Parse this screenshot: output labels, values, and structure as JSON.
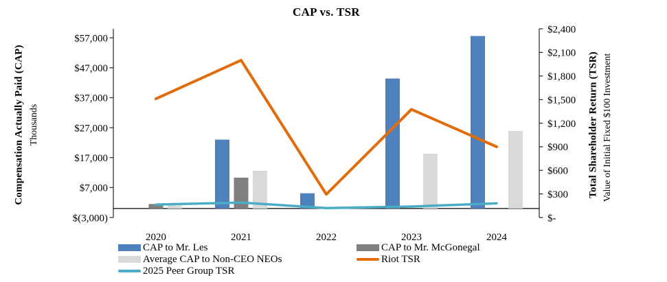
{
  "page": {
    "background": "#ffffff"
  },
  "chart_data": {
    "type": "combo-bar-line",
    "title": "CAP vs. TSR",
    "categories": [
      "2020",
      "2021",
      "2022",
      "2023",
      "2024"
    ],
    "left_axis": {
      "title": "Compensation Actually Paid (CAP)",
      "subtitle": "Thousands",
      "min": -3000,
      "max": 60000,
      "tick_step": 10000,
      "tick_labels": [
        "$(3,000)",
        "$7,000",
        "$17,000",
        "$27,000",
        "$37,000",
        "$47,000",
        "$57,000"
      ]
    },
    "right_axis": {
      "title": "Total Shareholder Return (TSR)",
      "subtitle": "Value of Initial Fixed $100 Investment",
      "min": 0,
      "max": 2400,
      "tick_step": 300,
      "tick_labels": [
        "$-",
        "$300",
        "$600",
        "$900",
        "$1,200",
        "$1,500",
        "$1,800",
        "$2,100",
        "$2,400"
      ]
    },
    "series": [
      {
        "name": "CAP to Mr. Les",
        "type": "bar",
        "axis": "left",
        "color": "#4F81BD",
        "values": [
          null,
          23000,
          5100,
          43400,
          57600
        ]
      },
      {
        "name": "CAP to Mr. McGonegal",
        "type": "bar",
        "axis": "left",
        "color": "#7F7F7F",
        "values": [
          1500,
          10300,
          null,
          null,
          null
        ]
      },
      {
        "name": "Average CAP to Non-CEO NEOs",
        "type": "bar",
        "axis": "left",
        "color": "#D9D9D9",
        "values": [
          1000,
          12600,
          null,
          18300,
          25900
        ]
      },
      {
        "name": "Riot TSR",
        "type": "line",
        "axis": "right",
        "color": "#E36C0A",
        "values": [
          1510,
          2000,
          295,
          1375,
          900
        ]
      },
      {
        "name": "2025 Peer Group TSR",
        "type": "line",
        "axis": "right",
        "color": "#4BACC6",
        "values": [
          165,
          190,
          120,
          140,
          180
        ]
      }
    ],
    "legend_position": "bottom",
    "axis_line_color": "#262626",
    "baseline_color": "#000000"
  }
}
